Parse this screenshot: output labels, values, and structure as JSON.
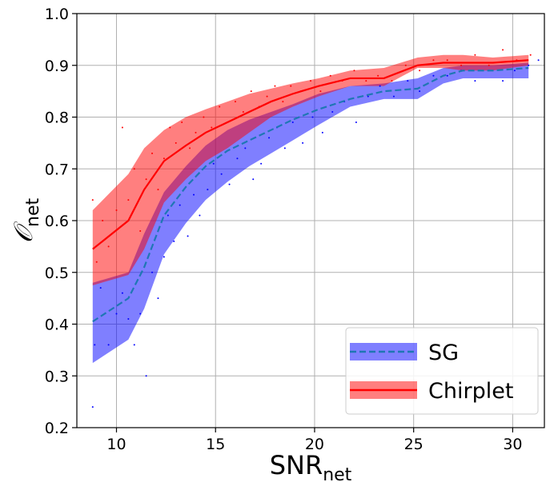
{
  "chart_data": {
    "type": "line",
    "xlabel": "SNR",
    "xlabel_sub": "net",
    "ylabel": "𝒪",
    "ylabel_sub": "net",
    "xlim": [
      8,
      31.6
    ],
    "ylim": [
      0.2,
      1.0
    ],
    "xticks": [
      10,
      15,
      20,
      25,
      30
    ],
    "yticks": [
      0.2,
      0.3,
      0.4,
      0.5,
      0.6,
      0.7,
      0.8,
      0.9,
      1.0
    ],
    "xtick_labels": [
      "10",
      "15",
      "20",
      "25",
      "30"
    ],
    "ytick_labels": [
      "0.2",
      "0.3",
      "0.4",
      "0.5",
      "0.6",
      "0.7",
      "0.8",
      "0.9",
      "1.0"
    ],
    "grid": true,
    "legend_position": "lower right",
    "series": [
      {
        "name": "SG",
        "line_style": "dashed",
        "line_color": "#1f77b4",
        "band_color": "#0000ff",
        "x": [
          8.8,
          10.6,
          11.4,
          12.4,
          13.5,
          14.5,
          15.6,
          16.7,
          17.8,
          18.9,
          20.2,
          21.8,
          23.5,
          25.2,
          26.5,
          27.5,
          29.0,
          30.8
        ],
        "y": [
          0.405,
          0.45,
          0.51,
          0.61,
          0.665,
          0.705,
          0.735,
          0.755,
          0.775,
          0.795,
          0.815,
          0.835,
          0.85,
          0.855,
          0.88,
          0.89,
          0.89,
          0.895
        ],
        "lower": [
          0.325,
          0.37,
          0.43,
          0.535,
          0.595,
          0.64,
          0.675,
          0.705,
          0.73,
          0.755,
          0.785,
          0.82,
          0.835,
          0.835,
          0.865,
          0.875,
          0.875,
          0.875
        ],
        "upper": [
          0.48,
          0.5,
          0.575,
          0.655,
          0.705,
          0.745,
          0.775,
          0.795,
          0.81,
          0.825,
          0.845,
          0.86,
          0.865,
          0.875,
          0.895,
          0.9,
          0.9,
          0.905
        ]
      },
      {
        "name": "Chirplet",
        "line_style": "solid",
        "line_color": "#ff0000",
        "band_color": "#ff0000",
        "x": [
          8.8,
          10.6,
          11.4,
          12.4,
          13.5,
          14.5,
          15.6,
          16.7,
          17.8,
          18.9,
          20.2,
          21.8,
          23.5,
          25.2,
          26.5,
          27.5,
          29.0,
          30.8
        ],
        "y": [
          0.545,
          0.6,
          0.66,
          0.715,
          0.745,
          0.77,
          0.79,
          0.81,
          0.83,
          0.845,
          0.86,
          0.875,
          0.875,
          0.9,
          0.905,
          0.905,
          0.905,
          0.91
        ],
        "lower": [
          0.475,
          0.495,
          0.545,
          0.635,
          0.68,
          0.715,
          0.74,
          0.77,
          0.8,
          0.82,
          0.84,
          0.86,
          0.86,
          0.895,
          0.895,
          0.89,
          0.89,
          0.9
        ],
        "upper": [
          0.62,
          0.69,
          0.74,
          0.775,
          0.8,
          0.815,
          0.83,
          0.845,
          0.855,
          0.865,
          0.875,
          0.89,
          0.895,
          0.915,
          0.92,
          0.92,
          0.915,
          0.92
        ]
      }
    ],
    "scatter": [
      {
        "name": "SG",
        "color": "#0000ff",
        "points": [
          [
            8.8,
            0.24
          ],
          [
            8.9,
            0.36
          ],
          [
            9.2,
            0.47
          ],
          [
            9.6,
            0.36
          ],
          [
            10.0,
            0.42
          ],
          [
            10.3,
            0.46
          ],
          [
            10.6,
            0.41
          ],
          [
            10.9,
            0.36
          ],
          [
            11.2,
            0.42
          ],
          [
            11.5,
            0.3
          ],
          [
            11.8,
            0.5
          ],
          [
            12.1,
            0.45
          ],
          [
            12.4,
            0.53
          ],
          [
            12.6,
            0.61
          ],
          [
            12.9,
            0.56
          ],
          [
            13.2,
            0.63
          ],
          [
            13.6,
            0.57
          ],
          [
            13.9,
            0.65
          ],
          [
            14.2,
            0.61
          ],
          [
            14.6,
            0.66
          ],
          [
            14.9,
            0.71
          ],
          [
            15.3,
            0.69
          ],
          [
            15.7,
            0.67
          ],
          [
            16.1,
            0.72
          ],
          [
            16.5,
            0.74
          ],
          [
            16.9,
            0.68
          ],
          [
            17.3,
            0.71
          ],
          [
            17.7,
            0.76
          ],
          [
            18.1,
            0.78
          ],
          [
            18.5,
            0.74
          ],
          [
            18.9,
            0.79
          ],
          [
            19.4,
            0.75
          ],
          [
            19.9,
            0.8
          ],
          [
            20.4,
            0.77
          ],
          [
            20.9,
            0.81
          ],
          [
            21.5,
            0.83
          ],
          [
            22.1,
            0.79
          ],
          [
            22.7,
            0.84
          ],
          [
            23.3,
            0.86
          ],
          [
            24.0,
            0.84
          ],
          [
            24.7,
            0.87
          ],
          [
            25.3,
            0.85
          ],
          [
            26.0,
            0.88
          ],
          [
            26.7,
            0.88
          ],
          [
            27.4,
            0.89
          ],
          [
            28.1,
            0.87
          ],
          [
            28.8,
            0.89
          ],
          [
            29.5,
            0.87
          ],
          [
            30.1,
            0.89
          ],
          [
            30.8,
            0.9
          ],
          [
            31.3,
            0.91
          ]
        ]
      },
      {
        "name": "Chirplet",
        "color": "#ff0000",
        "points": [
          [
            8.8,
            0.64
          ],
          [
            9.0,
            0.52
          ],
          [
            9.3,
            0.6
          ],
          [
            9.6,
            0.55
          ],
          [
            10.0,
            0.62
          ],
          [
            10.3,
            0.78
          ],
          [
            10.6,
            0.64
          ],
          [
            10.9,
            0.7
          ],
          [
            11.2,
            0.58
          ],
          [
            11.5,
            0.68
          ],
          [
            11.8,
            0.73
          ],
          [
            12.1,
            0.66
          ],
          [
            12.4,
            0.72
          ],
          [
            12.7,
            0.78
          ],
          [
            13.0,
            0.75
          ],
          [
            13.3,
            0.79
          ],
          [
            13.7,
            0.74
          ],
          [
            14.0,
            0.77
          ],
          [
            14.4,
            0.8
          ],
          [
            14.8,
            0.78
          ],
          [
            15.2,
            0.82
          ],
          [
            15.6,
            0.79
          ],
          [
            16.0,
            0.83
          ],
          [
            16.4,
            0.81
          ],
          [
            16.8,
            0.85
          ],
          [
            17.2,
            0.82
          ],
          [
            17.6,
            0.84
          ],
          [
            18.0,
            0.86
          ],
          [
            18.4,
            0.83
          ],
          [
            18.8,
            0.86
          ],
          [
            19.3,
            0.85
          ],
          [
            19.8,
            0.87
          ],
          [
            20.3,
            0.85
          ],
          [
            20.8,
            0.88
          ],
          [
            21.4,
            0.87
          ],
          [
            22.0,
            0.89
          ],
          [
            22.6,
            0.87
          ],
          [
            23.2,
            0.88
          ],
          [
            23.9,
            0.87
          ],
          [
            24.6,
            0.9
          ],
          [
            25.3,
            0.89
          ],
          [
            26.0,
            0.91
          ],
          [
            26.7,
            0.91
          ],
          [
            27.4,
            0.9
          ],
          [
            28.1,
            0.92
          ],
          [
            28.8,
            0.9
          ],
          [
            29.5,
            0.93
          ],
          [
            30.2,
            0.91
          ],
          [
            30.9,
            0.92
          ]
        ]
      }
    ]
  }
}
